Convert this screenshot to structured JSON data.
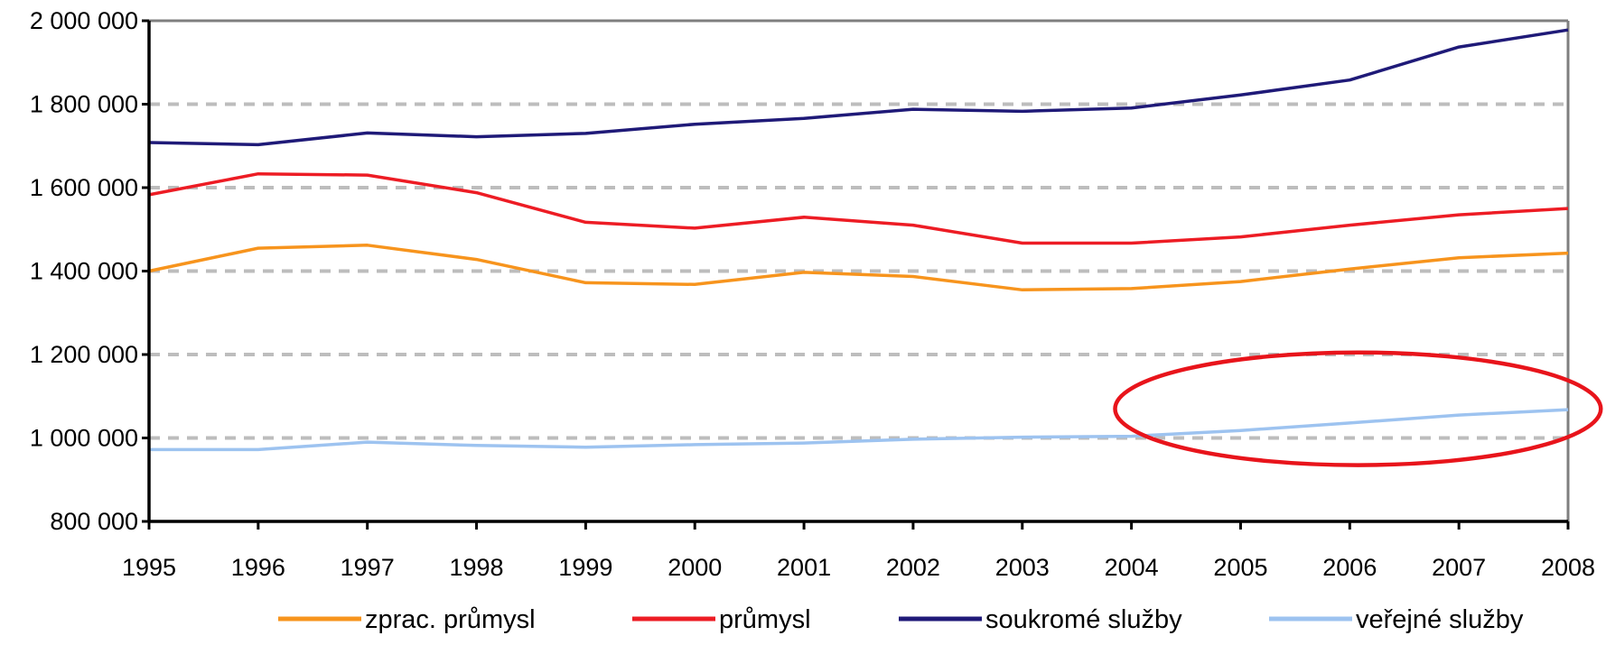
{
  "chart_data": {
    "type": "line",
    "title": "",
    "xlabel": "",
    "ylabel": "",
    "x": [
      1995,
      1996,
      1997,
      1998,
      1999,
      2000,
      2001,
      2002,
      2003,
      2004,
      2005,
      2006,
      2007,
      2008
    ],
    "x_tick_labels": [
      "1995",
      "1996",
      "1997",
      "1998",
      "1999",
      "2000",
      "2001",
      "2002",
      "2003",
      "2004",
      "2005",
      "2006",
      "2007",
      "2008"
    ],
    "ylim": [
      800000,
      2000000
    ],
    "y_ticks": [
      800000,
      1000000,
      1200000,
      1400000,
      1600000,
      1800000,
      2000000
    ],
    "y_tick_labels": [
      "800 000",
      "1 000 000",
      "1 200 000",
      "1 400 000",
      "1 600 000",
      "1 800 000",
      "2 000 000"
    ],
    "grid": "horizontal dashed",
    "legend_position": "bottom",
    "series": [
      {
        "name": "zprac. průmysl",
        "color": "#f7941d",
        "values": [
          1400000,
          1455000,
          1462000,
          1428000,
          1372000,
          1368000,
          1397000,
          1387000,
          1355000,
          1358000,
          1375000,
          1405000,
          1432000,
          1443000
        ]
      },
      {
        "name": "průmysl",
        "color": "#ed1c24",
        "values": [
          1583000,
          1633000,
          1630000,
          1588000,
          1517000,
          1503000,
          1529000,
          1510000,
          1467000,
          1467000,
          1482000,
          1510000,
          1535000,
          1550000
        ]
      },
      {
        "name": "soukromé služby",
        "color": "#1f1a78",
        "values": [
          1708000,
          1703000,
          1731000,
          1722000,
          1730000,
          1752000,
          1766000,
          1788000,
          1783000,
          1791000,
          1822000,
          1858000,
          1937000,
          1978000
        ]
      },
      {
        "name": "veřejné služby",
        "color": "#9dc3f0",
        "values": [
          972000,
          972000,
          990000,
          982000,
          978000,
          984000,
          988000,
          997000,
          1002000,
          1004000,
          1018000,
          1036000,
          1055000,
          1068000
        ]
      }
    ],
    "annotations": [
      {
        "shape": "ellipse",
        "color": "#e8141b",
        "x_range": [
          2003.85,
          2008.3
        ],
        "y_range": [
          935000,
          1205000
        ]
      }
    ]
  }
}
